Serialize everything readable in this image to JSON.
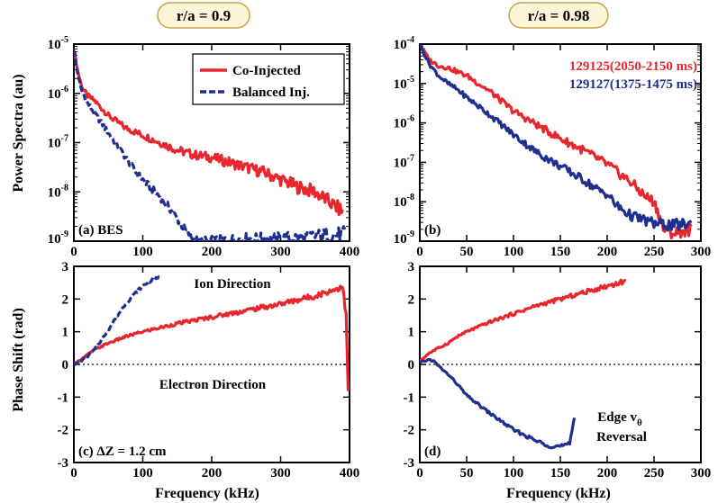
{
  "colors": {
    "co": "#e8262e",
    "bal": "#1f2f8f",
    "title_bg": "#fdf5d8",
    "title_border": "#c8a04a"
  },
  "column_titles": [
    "r/a = 0.9",
    "r/a = 0.98"
  ],
  "ylabel_top": "Power Spectra (au)",
  "ylabel_bottom": "Phase Shift (rad)",
  "xlabel": "Frequency (kHz)",
  "chart_data": [
    {
      "id": "a",
      "type": "line",
      "scale_y": "log",
      "panel_label": "(a) BES",
      "xlim": [
        0,
        400
      ],
      "ylim_exp": [
        -9,
        -5
      ],
      "xticks": [
        0,
        100,
        200,
        300,
        400
      ],
      "yticks_exp": [
        -9,
        -8,
        -7,
        -6,
        -5
      ],
      "legend": {
        "placement": "top-right",
        "items": [
          "Co-Injected",
          "Balanced Inj."
        ]
      },
      "series": [
        {
          "name": "Co-Injected",
          "color": "co",
          "style": "solid",
          "x": [
            0,
            5,
            10,
            15,
            20,
            30,
            40,
            50,
            60,
            75,
            100,
            125,
            150,
            175,
            200,
            225,
            250,
            275,
            300,
            325,
            350,
            370,
            390
          ],
          "logy": [
            -5.1,
            -5.5,
            -5.8,
            -5.95,
            -6.05,
            -6.15,
            -6.3,
            -6.45,
            -6.55,
            -6.7,
            -6.85,
            -7.0,
            -7.15,
            -7.25,
            -7.3,
            -7.4,
            -7.5,
            -7.6,
            -7.75,
            -7.9,
            -8.0,
            -8.2,
            -8.4
          ]
        },
        {
          "name": "Balanced Inj.",
          "color": "bal",
          "style": "dashed",
          "x": [
            0,
            5,
            10,
            15,
            20,
            30,
            40,
            50,
            60,
            75,
            90,
            100,
            110,
            125,
            140,
            150,
            160,
            170,
            180,
            200,
            250,
            300,
            350,
            395
          ],
          "logy": [
            -5.1,
            -5.55,
            -5.9,
            -6.05,
            -6.2,
            -6.4,
            -6.6,
            -6.8,
            -7.0,
            -7.3,
            -7.6,
            -7.75,
            -7.9,
            -8.1,
            -8.35,
            -8.55,
            -8.75,
            -8.9,
            -9.0,
            -9.0,
            -8.95,
            -8.95,
            -8.9,
            -8.85
          ]
        }
      ]
    },
    {
      "id": "b",
      "type": "line",
      "scale_y": "log",
      "panel_label": "(b)",
      "xlim": [
        0,
        300
      ],
      "ylim_exp": [
        -9,
        -4
      ],
      "xticks": [
        0,
        50,
        100,
        150,
        200,
        250,
        300
      ],
      "yticks_exp": [
        -9,
        -8,
        -7,
        -6,
        -5,
        -4
      ],
      "legend": {
        "placement": "top-right",
        "items": [
          "129125(2050-2150 ms)",
          "129127(1375-1475 ms)"
        ]
      },
      "series": [
        {
          "name": "129125(2050-2150 ms)",
          "color": "co",
          "style": "solid",
          "x": [
            0,
            10,
            20,
            30,
            40,
            50,
            75,
            100,
            125,
            150,
            175,
            200,
            225,
            240,
            250,
            255,
            260,
            270,
            280,
            290
          ],
          "logy": [
            -4.0,
            -4.4,
            -4.55,
            -4.6,
            -4.7,
            -4.8,
            -5.2,
            -5.7,
            -6.05,
            -6.4,
            -6.7,
            -7.05,
            -7.5,
            -7.85,
            -8.0,
            -8.3,
            -8.7,
            -8.8,
            -8.75,
            -8.7
          ]
        },
        {
          "name": "129127(1375-1475 ms)",
          "color": "bal",
          "style": "solid",
          "x": [
            0,
            10,
            20,
            30,
            40,
            50,
            75,
            100,
            125,
            150,
            175,
            190,
            200,
            210,
            225,
            250,
            270,
            290
          ],
          "logy": [
            -4.0,
            -4.5,
            -4.8,
            -5.0,
            -5.15,
            -5.35,
            -5.8,
            -6.3,
            -6.75,
            -7.1,
            -7.45,
            -7.7,
            -7.8,
            -8.1,
            -8.35,
            -8.55,
            -8.6,
            -8.55
          ]
        }
      ]
    },
    {
      "id": "c",
      "type": "line",
      "scale_y": "linear",
      "panel_label": "(c) ΔZ = 1.2 cm",
      "xlim": [
        0,
        400
      ],
      "ylim": [
        -3,
        3
      ],
      "xticks": [
        0,
        100,
        200,
        300,
        400
      ],
      "yticks": [
        -3,
        -2,
        -1,
        0,
        1,
        2,
        3
      ],
      "annotations": [
        "Ion Direction",
        "Electron Direction"
      ],
      "series": [
        {
          "name": "Co-Injected",
          "color": "co",
          "style": "solid",
          "x": [
            0,
            10,
            20,
            30,
            40,
            50,
            75,
            100,
            150,
            200,
            250,
            300,
            350,
            380,
            390,
            395,
            398
          ],
          "y": [
            0.0,
            0.15,
            0.3,
            0.45,
            0.55,
            0.65,
            0.85,
            1.0,
            1.25,
            1.45,
            1.65,
            1.85,
            2.1,
            2.3,
            2.4,
            1.5,
            -0.8
          ]
        },
        {
          "name": "Balanced Inj.",
          "color": "bal",
          "style": "dashed",
          "x": [
            0,
            10,
            20,
            30,
            40,
            50,
            60,
            75,
            90,
            100,
            110,
            125
          ],
          "y": [
            0.0,
            0.1,
            0.25,
            0.45,
            0.75,
            1.05,
            1.4,
            1.85,
            2.2,
            2.4,
            2.55,
            2.65
          ]
        }
      ]
    },
    {
      "id": "d",
      "type": "line",
      "scale_y": "linear",
      "panel_label": "(d)",
      "xlim": [
        0,
        300
      ],
      "ylim": [
        -3,
        3
      ],
      "xticks": [
        0,
        50,
        100,
        150,
        200,
        250,
        300
      ],
      "yticks": [
        -3,
        -2,
        -1,
        0,
        1,
        2,
        3
      ],
      "annotations": [
        "Edge v",
        "θ",
        "Reversal"
      ],
      "series": [
        {
          "name": "129125(2050-2150 ms)",
          "color": "co",
          "style": "solid",
          "x": [
            0,
            10,
            20,
            30,
            40,
            50,
            75,
            100,
            125,
            150,
            175,
            200,
            220
          ],
          "y": [
            0.1,
            0.35,
            0.5,
            0.65,
            0.85,
            1.0,
            1.3,
            1.55,
            1.8,
            2.0,
            2.2,
            2.4,
            2.55
          ]
        },
        {
          "name": "129127(1375-1475 ms)",
          "color": "bal",
          "style": "solid",
          "x": [
            0,
            10,
            15,
            20,
            30,
            40,
            50,
            75,
            100,
            125,
            140,
            150,
            160,
            165
          ],
          "y": [
            0.05,
            0.15,
            0.1,
            -0.05,
            -0.3,
            -0.6,
            -0.95,
            -1.5,
            -2.0,
            -2.35,
            -2.5,
            -2.5,
            -2.45,
            -1.6
          ]
        }
      ]
    }
  ]
}
